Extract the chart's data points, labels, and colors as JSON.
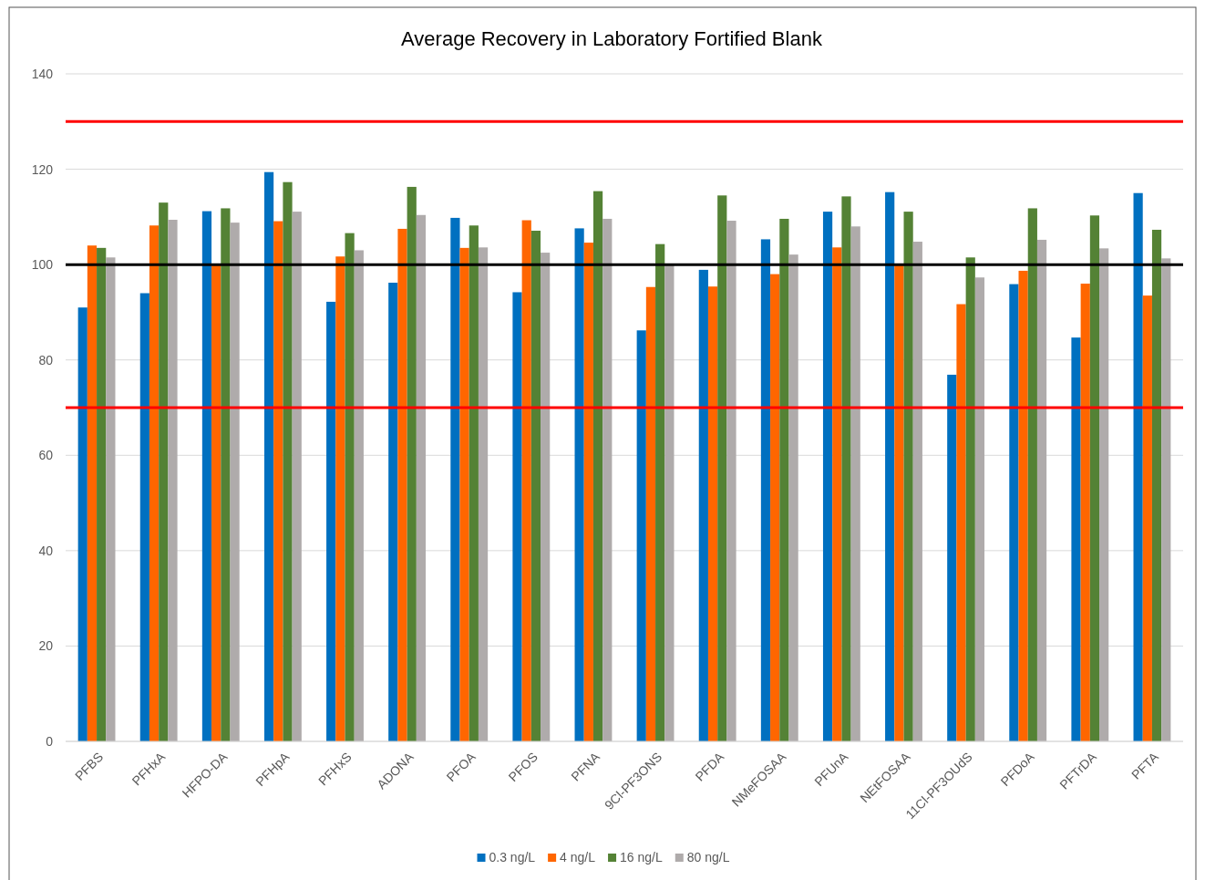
{
  "chart_data": {
    "type": "bar",
    "title": "Average Recovery in Laboratory Fortified Blank",
    "categories": [
      "PFBS",
      "PFHxA",
      "HFPO-DA",
      "PFHpA",
      "PFHxS",
      "ADONA",
      "PFOA",
      "PFOS",
      "PFNA",
      "9Cl-PF3ONS",
      "PFDA",
      "NMeFOSAA",
      "PFUnA",
      "NEtFOSAA",
      "11Cl-PF3OUdS",
      "PFDoA",
      "PFTrDA",
      "PFTA"
    ],
    "series": [
      {
        "name": "0.3 ng/L",
        "color": "#0070c0",
        "values": [
          91.0,
          94.0,
          111.2,
          119.4,
          92.2,
          96.2,
          109.8,
          94.2,
          107.6,
          86.2,
          98.9,
          105.3,
          111.1,
          115.2,
          76.9,
          95.9,
          84.7,
          115.0
        ]
      },
      {
        "name": "4 ng/L",
        "color": "#ff6600",
        "values": [
          104.0,
          108.2,
          100,
          109.1,
          101.7,
          107.5,
          103.5,
          109.3,
          104.6,
          95.3,
          95.4,
          98.0,
          103.6,
          100,
          91.7,
          98.7,
          96.0,
          93.5
        ]
      },
      {
        "name": "16 ng/L",
        "color": "#548235",
        "values": [
          103.5,
          113.0,
          111.8,
          117.3,
          106.6,
          116.3,
          108.2,
          107.1,
          115.4,
          104.3,
          114.5,
          109.6,
          114.3,
          111.1,
          101.5,
          111.8,
          110.3,
          107.3
        ]
      },
      {
        "name": "80 ng/L",
        "color": "#afabab",
        "values": [
          101.5,
          109.4,
          108.8,
          111.1,
          103.0,
          110.4,
          103.6,
          102.5,
          109.6,
          100,
          109.2,
          102.1,
          108.0,
          104.8,
          97.3,
          105.2,
          103.4,
          101.3
        ]
      }
    ],
    "ylim": [
      0,
      140
    ],
    "yticks": [
      0,
      20,
      40,
      60,
      80,
      100,
      120,
      140
    ],
    "grid": "y",
    "legend": "bottom",
    "ref_lines": [
      {
        "axis": "y",
        "value": 130,
        "color": "#ff0000"
      },
      {
        "axis": "y",
        "value": 100,
        "color": "#000000"
      },
      {
        "axis": "y",
        "value": 70,
        "color": "#ff0000"
      }
    ]
  }
}
